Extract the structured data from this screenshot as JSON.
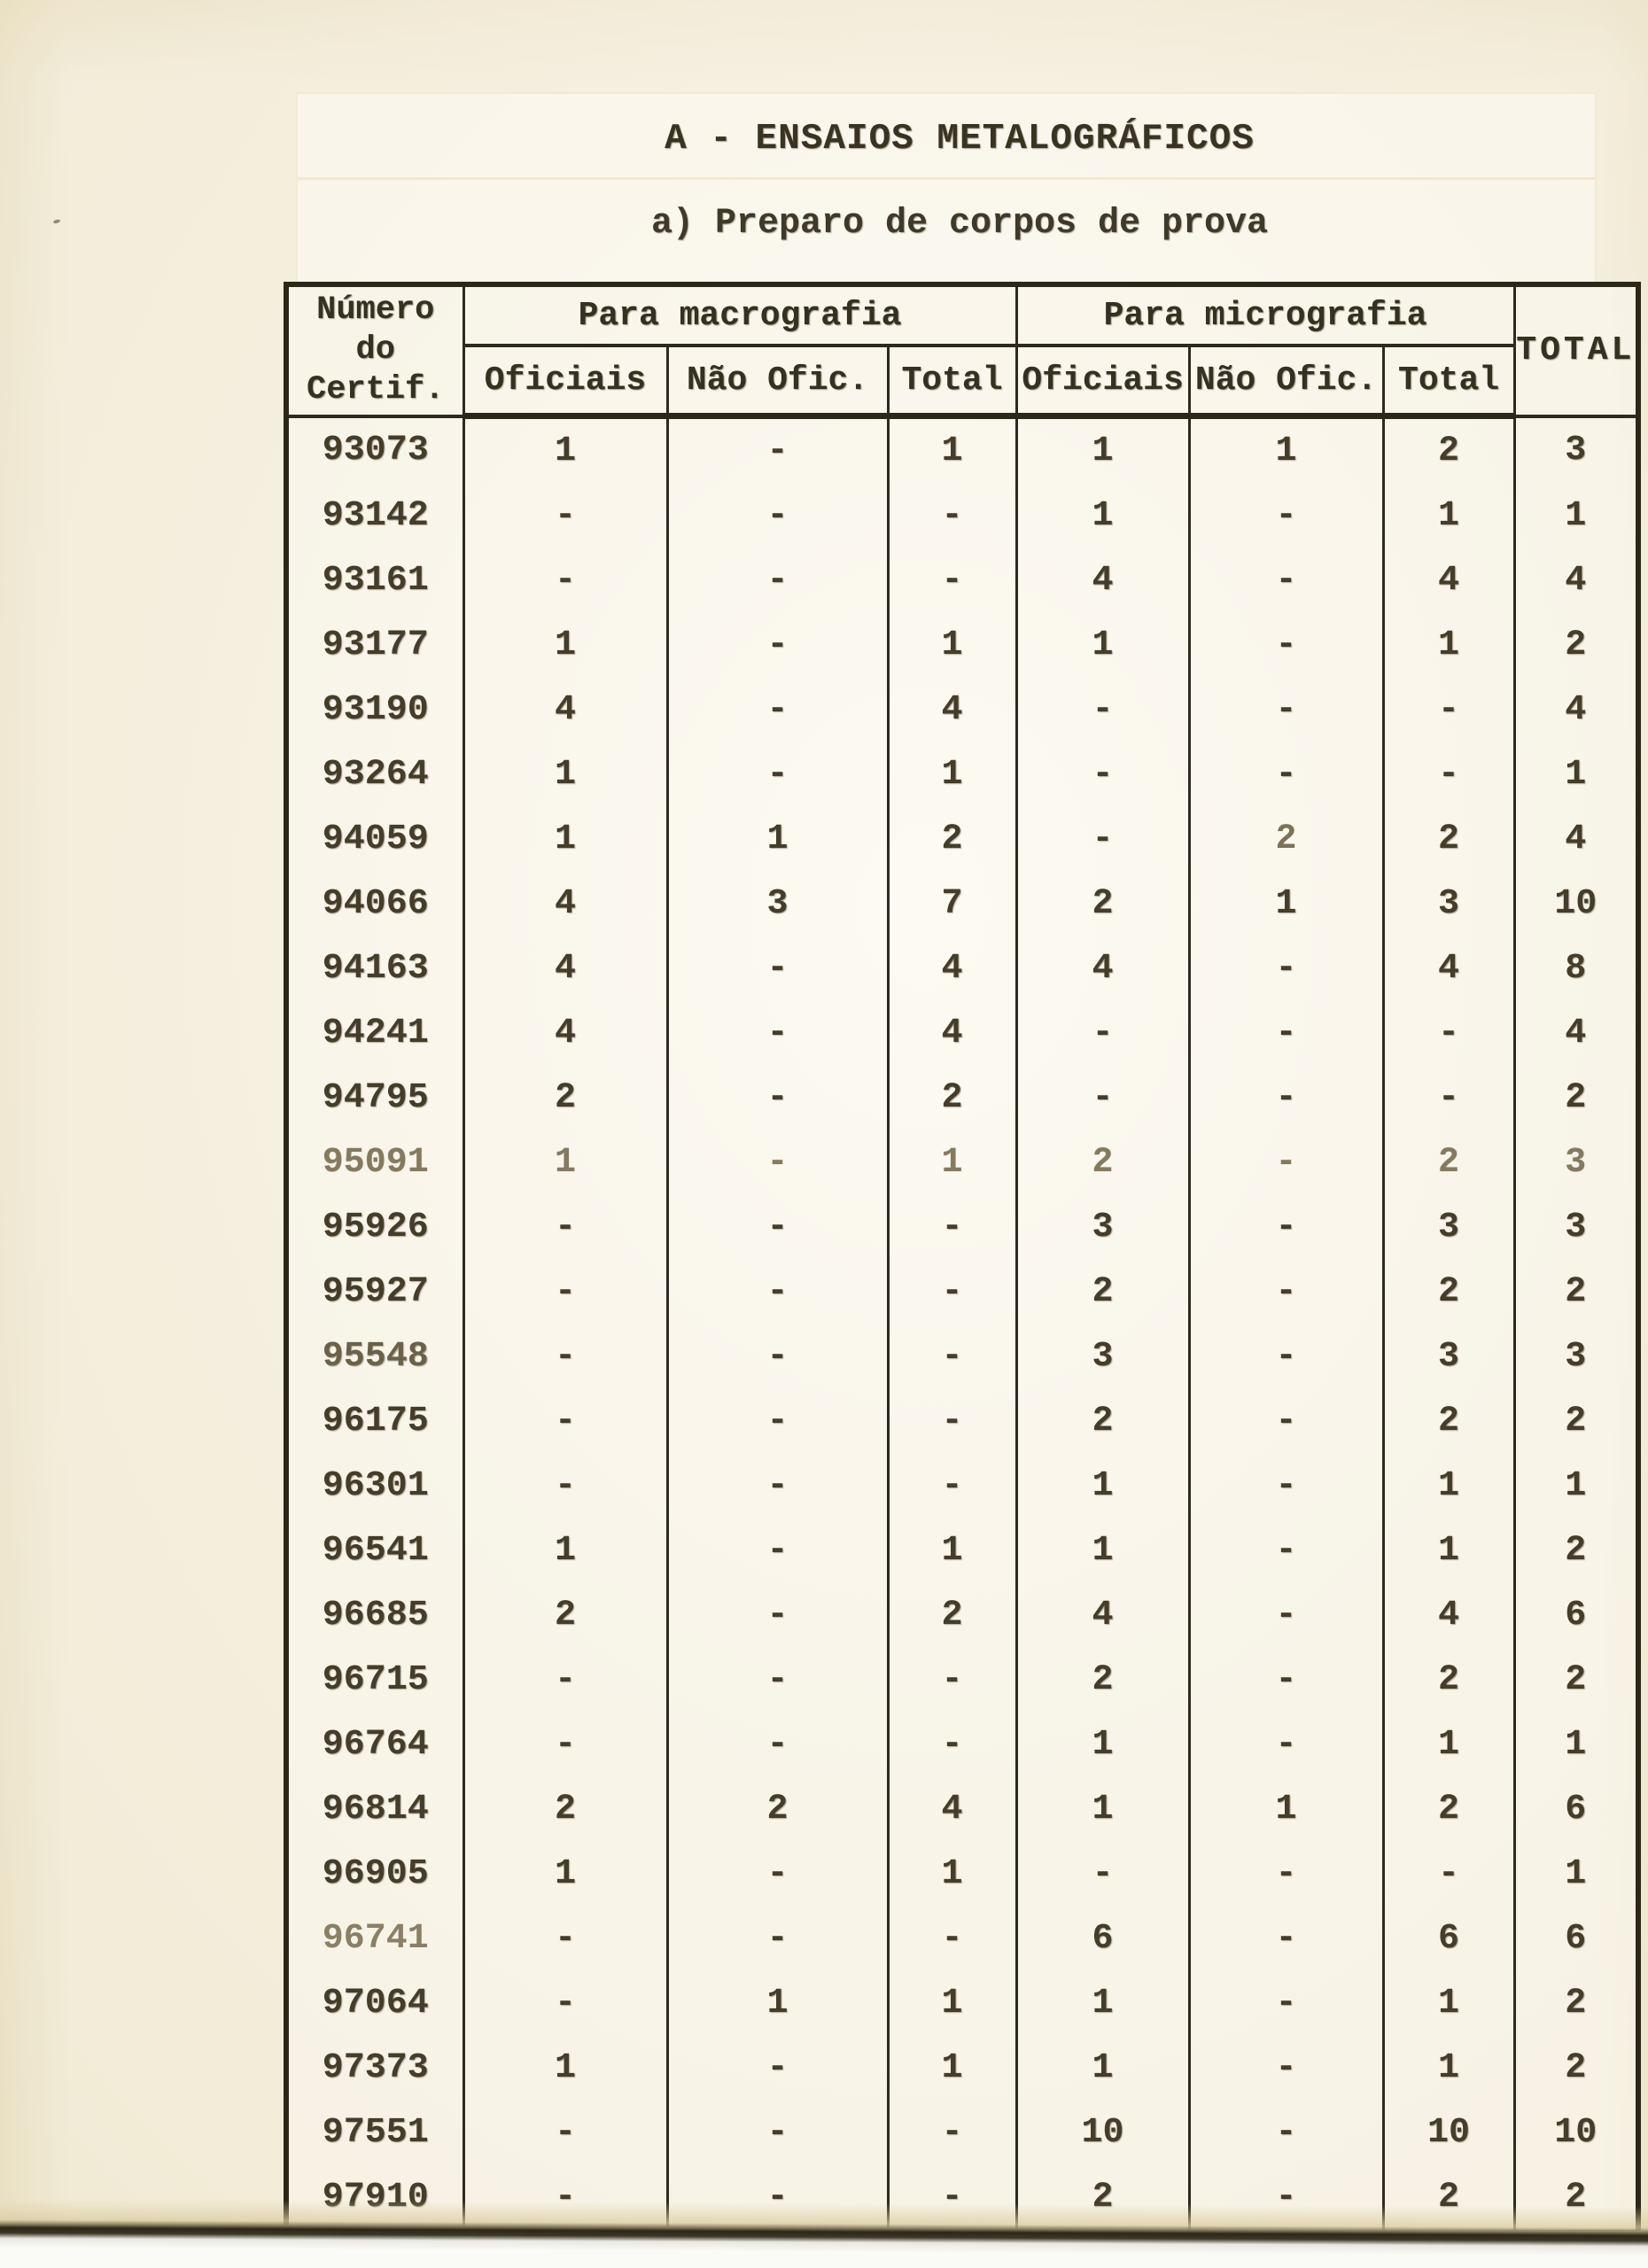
{
  "page": {
    "section_title": "A - ENSAIOS METALOGRÁFICOS",
    "subtitle": "a) Preparo de corpos de prova"
  },
  "table": {
    "corner_header_lines": [
      "Número",
      "do",
      "Certif."
    ],
    "group_headers": {
      "macro": "Para macrografia",
      "micro": "Para micrografia"
    },
    "sub_headers": {
      "officials": "Oficiais",
      "non_officials": "Não Ofic.",
      "total": "Total"
    },
    "grand_total_header": "TOTAL",
    "columns": [
      "Número do Certif.",
      "Macrografia Oficiais",
      "Macrografia Não Ofic.",
      "Macrografia Total",
      "Micrografia Oficiais",
      "Micrografia Não Ofic.",
      "Micrografia Total",
      "TOTAL"
    ],
    "rows": [
      [
        "93073",
        "1",
        "-",
        "1",
        "1",
        "1",
        "2",
        "3"
      ],
      [
        "93142",
        "-",
        "-",
        "-",
        "1",
        "-",
        "1",
        "1"
      ],
      [
        "93161",
        "-",
        "-",
        "-",
        "4",
        "-",
        "4",
        "4"
      ],
      [
        "93177",
        "1",
        "-",
        "1",
        "1",
        "-",
        "1",
        "2"
      ],
      [
        "93190",
        "4",
        "-",
        "4",
        "-",
        "-",
        "-",
        "4"
      ],
      [
        "93264",
        "1",
        "-",
        "1",
        "-",
        "-",
        "-",
        "1"
      ],
      [
        "94059",
        "1",
        "1",
        "2",
        "-",
        "2",
        "2",
        "4"
      ],
      [
        "94066",
        "4",
        "3",
        "7",
        "2",
        "1",
        "3",
        "10"
      ],
      [
        "94163",
        "4",
        "-",
        "4",
        "4",
        "-",
        "4",
        "8"
      ],
      [
        "94241",
        "4",
        "-",
        "4",
        "-",
        "-",
        "-",
        "4"
      ],
      [
        "94795",
        "2",
        "-",
        "2",
        "-",
        "-",
        "-",
        "2"
      ],
      [
        "95091",
        "1",
        "-",
        "1",
        "2",
        "-",
        "2",
        "3"
      ],
      [
        "95926",
        "-",
        "-",
        "-",
        "3",
        "-",
        "3",
        "3"
      ],
      [
        "95927",
        "-",
        "-",
        "-",
        "2",
        "-",
        "2",
        "2"
      ],
      [
        "95548",
        "-",
        "-",
        "-",
        "3",
        "-",
        "3",
        "3"
      ],
      [
        "96175",
        "-",
        "-",
        "-",
        "2",
        "-",
        "2",
        "2"
      ],
      [
        "96301",
        "-",
        "-",
        "-",
        "1",
        "-",
        "1",
        "1"
      ],
      [
        "96541",
        "1",
        "-",
        "1",
        "1",
        "-",
        "1",
        "2"
      ],
      [
        "96685",
        "2",
        "-",
        "2",
        "4",
        "-",
        "4",
        "6"
      ],
      [
        "96715",
        "-",
        "-",
        "-",
        "2",
        "-",
        "2",
        "2"
      ],
      [
        "96764",
        "-",
        "-",
        "-",
        "1",
        "-",
        "1",
        "1"
      ],
      [
        "96814",
        "2",
        "2",
        "4",
        "1",
        "1",
        "2",
        "6"
      ],
      [
        "96905",
        "1",
        "-",
        "1",
        "-",
        "-",
        "-",
        "1"
      ],
      [
        "96741",
        "-",
        "-",
        "-",
        "6",
        "-",
        "6",
        "6"
      ],
      [
        "97064",
        "-",
        "1",
        "1",
        "1",
        "-",
        "1",
        "2"
      ],
      [
        "97373",
        "1",
        "-",
        "1",
        "1",
        "-",
        "1",
        "2"
      ],
      [
        "97551",
        "-",
        "-",
        "-",
        "10",
        "-",
        "10",
        "10"
      ],
      [
        "97910",
        "-",
        "-",
        "-",
        "2",
        "-",
        "2",
        "2"
      ]
    ]
  }
}
